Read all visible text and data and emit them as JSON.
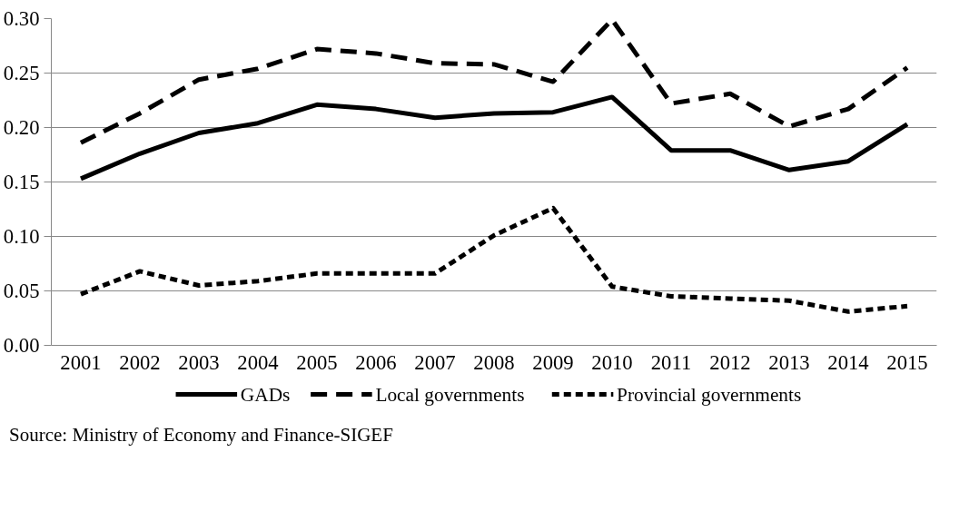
{
  "chart_data": {
    "type": "line",
    "categories": [
      "2001",
      "2002",
      "2003",
      "2004",
      "2005",
      "2006",
      "2007",
      "2008",
      "2009",
      "2010",
      "2011",
      "2012",
      "2013",
      "2014",
      "2015"
    ],
    "series": [
      {
        "name": "GADs",
        "color": "#000000",
        "line_style": "solid",
        "values": [
          0.153,
          0.176,
          0.195,
          0.204,
          0.221,
          0.217,
          0.209,
          0.213,
          0.214,
          0.228,
          0.179,
          0.179,
          0.161,
          0.169,
          0.203
        ]
      },
      {
        "name": "Local governments",
        "color": "#000000",
        "line_style": "dashed",
        "values": [
          0.186,
          0.213,
          0.244,
          0.254,
          0.272,
          0.268,
          0.259,
          0.258,
          0.242,
          0.299,
          0.222,
          0.231,
          0.201,
          0.217,
          0.255
        ]
      },
      {
        "name": "Provincial governments",
        "color": "#000000",
        "line_style": "dotted",
        "values": [
          0.047,
          0.068,
          0.055,
          0.059,
          0.066,
          0.066,
          0.066,
          0.101,
          0.126,
          0.054,
          0.045,
          0.043,
          0.041,
          0.031,
          0.036
        ]
      }
    ],
    "ylim": [
      0,
      0.3
    ],
    "yticks": [
      {
        "value": 0,
        "label": "0.00"
      },
      {
        "value": 0.05,
        "label": "0.05"
      },
      {
        "value": 0.1,
        "label": "0.10"
      },
      {
        "value": 0.15,
        "label": "0.15"
      },
      {
        "value": 0.2,
        "label": "0.20"
      },
      {
        "value": 0.25,
        "label": "0.25"
      },
      {
        "value": 0.3,
        "label": "0.30"
      }
    ],
    "grid": "y",
    "legend": "bottom",
    "marker": "none",
    "annotations": [
      "Source: Ministry of Economy and Finance-SIGEF"
    ]
  }
}
